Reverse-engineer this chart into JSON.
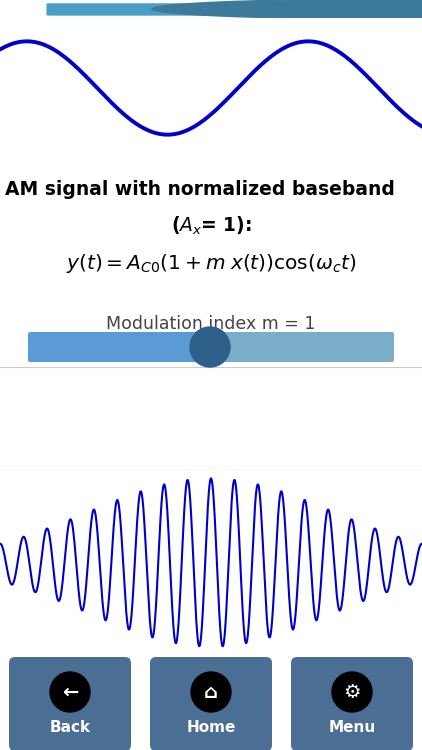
{
  "bg_color": "#ffffff",
  "white_bg": "#ffffff",
  "blue_slider_left": "#5b9bd5",
  "blue_slider_right": "#7aaec8",
  "blue_knob": "#2e5f8a",
  "blue_curve": "#0a0acc",
  "nav_bar_color": "#5b7fa6",
  "nav_btn_color": "#4a6e94",
  "title_text1": "AM signal with normalized baseband",
  "title_text2": "($A_x$= 1):",
  "formula": "$y(t) = A_{C0}(1+m\\;x(t))\\cos(\\omega_c t)$",
  "slider_label": "Modulation index m = 1",
  "nav_labels": [
    "Back",
    "Home",
    "Menu"
  ],
  "top_slider_color": "#4a9fc8",
  "top_knob_color": "#3d7a9a",
  "sine_color": "#0000cc",
  "am_color": "#0000cc",
  "top_bar_color": "#111111"
}
